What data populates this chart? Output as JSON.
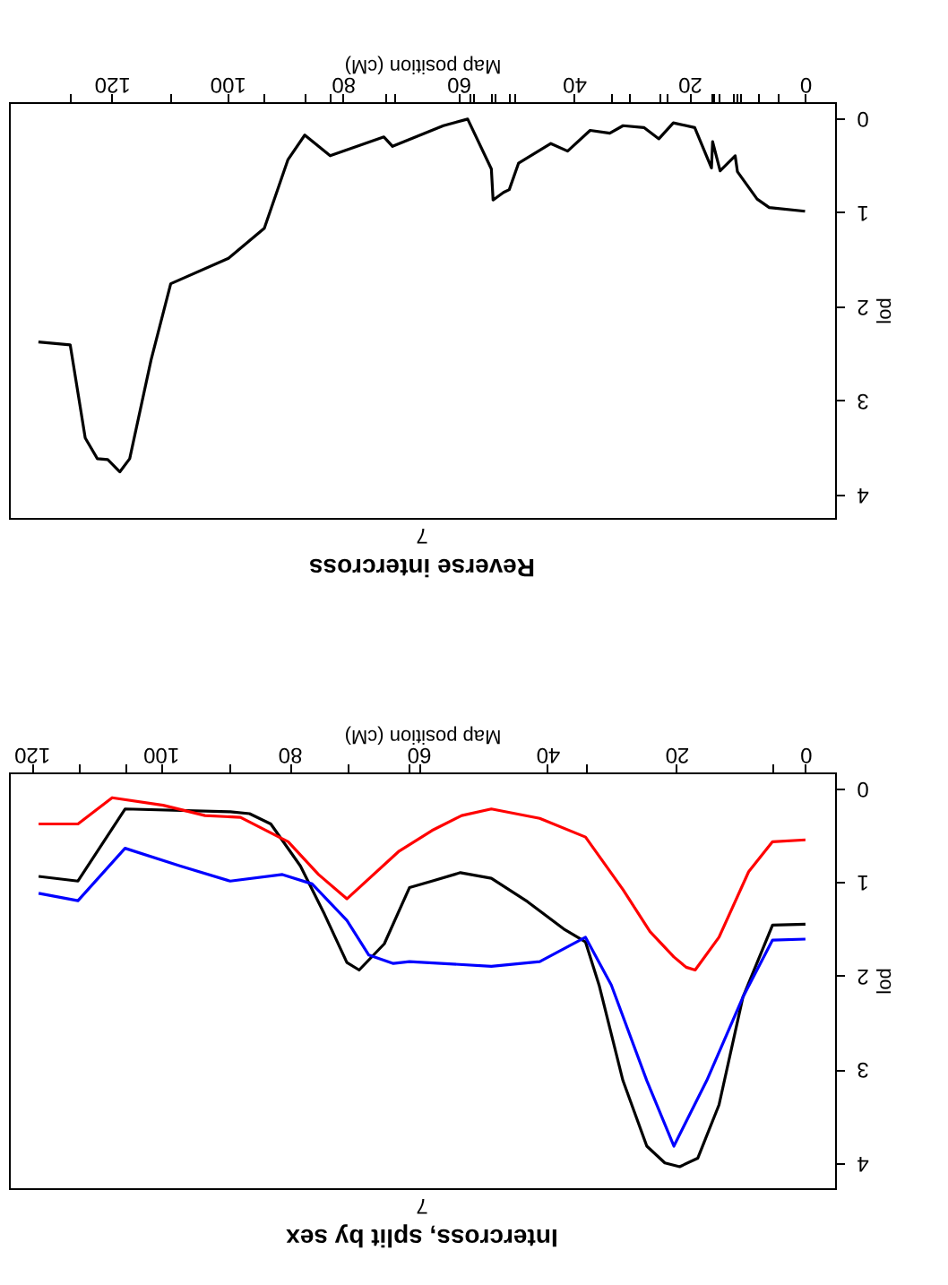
{
  "chart_data": [
    {
      "type": "line",
      "title": "Reverse intercross",
      "xlabel": "Map position (cM)",
      "ylabel": "lod",
      "annotations": [
        "7"
      ],
      "grid": false,
      "xlim": [
        137.8,
        -5.2
      ],
      "ylim": [
        4.25,
        -0.17
      ],
      "xticks": [
        0,
        20,
        40,
        60,
        80,
        100,
        120,
        {
          "value": 127.2,
          "label": null
        },
        {
          "value": 109.8,
          "label": null
        },
        {
          "value": 93.6,
          "label": null
        },
        {
          "value": 86.7,
          "label": null
        },
        {
          "value": 82.4,
          "label": null
        },
        {
          "value": 72.8,
          "label": null
        },
        {
          "value": 71.2,
          "label": null
        },
        {
          "value": 58.2,
          "label": null
        },
        {
          "value": 57.4,
          "label": null
        },
        {
          "value": 54.3,
          "label": null
        },
        {
          "value": 53.8,
          "label": null
        },
        {
          "value": 51.3,
          "label": null
        },
        {
          "value": 50.4,
          "label": null
        },
        {
          "value": 33.6,
          "label": null
        },
        {
          "value": 30.5,
          "label": null
        },
        {
          "value": 25.3,
          "label": null
        },
        {
          "value": 24.0,
          "label": null
        },
        {
          "value": 16.3,
          "label": null
        },
        {
          "value": 15.8,
          "label": null
        },
        {
          "value": 15.0,
          "label": null
        },
        {
          "value": 12.4,
          "label": null
        },
        {
          "value": 11.9,
          "label": null
        },
        {
          "value": 11.2,
          "label": null
        },
        {
          "value": 8.0,
          "label": null
        },
        {
          "value": 4.7,
          "label": null
        }
      ],
      "yticks": [
        0,
        1,
        2,
        3,
        4
      ],
      "series": [
        {
          "color": "#000000",
          "x": [
            0,
            6.2,
            8.3,
            11.7,
            12.1,
            14.7,
            16.0,
            16.2,
            19.1,
            22.8,
            25.3,
            27.9,
            31.5,
            33.8,
            37.2,
            41.1,
            44.0,
            49.6,
            51.2,
            52.2,
            54.0,
            54.3,
            58.4,
            62.6,
            71.4,
            72.9,
            82.2,
            86.6,
            89.5,
            93.6,
            99.8,
            109.8,
            113.2,
            116.9,
            118.6,
            120.7,
            122.5,
            124.6,
            127.2,
            132.7
          ],
          "values": [
            0.99,
            0.95,
            0.86,
            0.57,
            0.4,
            0.56,
            0.25,
            0.53,
            0.1,
            0.05,
            0.22,
            0.1,
            0.08,
            0.16,
            0.13,
            0.35,
            0.27,
            0.48,
            0.76,
            0.79,
            0.87,
            0.54,
            0.01,
            0.08,
            0.3,
            0.2,
            0.4,
            0.18,
            0.44,
            1.17,
            1.49,
            1.76,
            2.57,
            3.62,
            3.76,
            3.63,
            3.62,
            3.4,
            2.41,
            2.38
          ]
        }
      ]
    },
    {
      "type": "line",
      "title": "Intercross, split by sex",
      "xlabel": "Map position (cM)",
      "ylabel": "lod",
      "annotations": [
        "7"
      ],
      "grid": false,
      "xlim": [
        123.5,
        -4.6
      ],
      "ylim": [
        4.27,
        -0.17
      ],
      "xticks": [
        0,
        20,
        40,
        60,
        80,
        100,
        120,
        {
          "value": 5.1,
          "label": null
        },
        {
          "value": 34.1,
          "label": null
        },
        {
          "value": 61.4,
          "label": null
        },
        {
          "value": 71.1,
          "label": null
        },
        {
          "value": 89.2,
          "label": null
        },
        {
          "value": 105.5,
          "label": null
        },
        {
          "value": 112.8,
          "label": null
        }
      ],
      "yticks": [
        0,
        1,
        2,
        3,
        4
      ],
      "series": [
        {
          "color": "#000000",
          "x": [
            0,
            5.1,
            9.7,
            13.4,
            16.7,
            19.5,
            21.8,
            24.6,
            28.3,
            32.0,
            34.1,
            37.5,
            43.1,
            48.7,
            53.5,
            57.9,
            61.4,
            65.3,
            69.2,
            71.1,
            74.6,
            78.3,
            82.9,
            86.2,
            89.2,
            105.5,
            112.8,
            118.9
          ],
          "values": [
            1.45,
            1.46,
            2.23,
            3.38,
            3.95,
            4.04,
            4.0,
            3.82,
            3.12,
            2.1,
            1.64,
            1.5,
            1.21,
            0.96,
            0.9,
            0.99,
            1.06,
            1.66,
            1.94,
            1.86,
            1.34,
            0.83,
            0.38,
            0.27,
            0.25,
            0.22,
            0.99,
            0.94
          ]
        },
        {
          "color": "#ff0000",
          "x": [
            0,
            5.1,
            8.8,
            13.4,
            17.1,
            18.5,
            20.4,
            24.1,
            28.3,
            34.1,
            41.2,
            48.7,
            53.3,
            57.9,
            63.0,
            71.1,
            75.5,
            80.2,
            87.6,
            93.1,
            99.6,
            107.5,
            112.8,
            118.9
          ],
          "values": [
            0.55,
            0.57,
            0.89,
            1.59,
            1.94,
            1.91,
            1.8,
            1.53,
            1.08,
            0.52,
            0.32,
            0.22,
            0.29,
            0.45,
            0.67,
            1.18,
            0.92,
            0.57,
            0.31,
            0.29,
            0.18,
            0.1,
            0.38,
            0.38
          ]
        },
        {
          "color": "#0000ff",
          "x": [
            0,
            5.1,
            9.7,
            15.3,
            20.4,
            24.6,
            30.1,
            34.1,
            41.2,
            48.7,
            61.4,
            63.9,
            67.7,
            71.1,
            76.5,
            81.1,
            89.2,
            96.9,
            105.5,
            112.8,
            118.9
          ],
          "values": [
            1.61,
            1.62,
            2.23,
            3.12,
            3.82,
            3.12,
            2.1,
            1.59,
            1.85,
            1.9,
            1.85,
            1.87,
            1.78,
            1.41,
            1.02,
            0.92,
            0.99,
            0.83,
            0.64,
            1.2,
            1.12
          ]
        }
      ]
    }
  ]
}
